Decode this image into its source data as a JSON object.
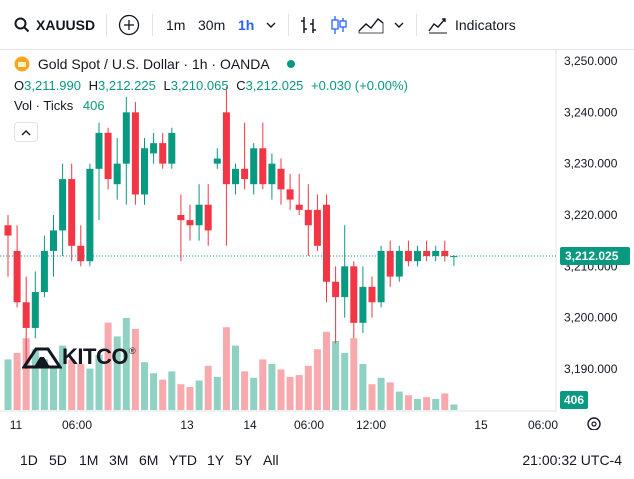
{
  "toolbar": {
    "symbol": "XAUUSD",
    "intervals": [
      "1m",
      "30m",
      "1h"
    ],
    "active_interval": "1h",
    "indicators_label": "Indicators"
  },
  "legend": {
    "title": "Gold Spot / U.S. Dollar · 1h · OANDA",
    "ohlc": [
      {
        "k": "O",
        "v": "3,211.990"
      },
      {
        "k": "H",
        "v": "3,212.225"
      },
      {
        "k": "L",
        "v": "3,210.065"
      },
      {
        "k": "C",
        "v": "3,212.025"
      }
    ],
    "change": "+0.030 (+0.00%)",
    "vol_label": "Vol · Ticks",
    "vol_value": "406"
  },
  "watermark": "KITCO",
  "current_price_label": "3,212.025",
  "current_volume_label": "406",
  "time_axis": [
    "11",
    "06:00",
    "13",
    "14",
    "06:00",
    "12:00",
    "15",
    "06:00"
  ],
  "range_buttons": [
    "1D",
    "5D",
    "1M",
    "3M",
    "6M",
    "YTD",
    "1Y",
    "5Y",
    "All"
  ],
  "clock": "21:00:32 UTC-4",
  "colors": {
    "up": "#089981",
    "down": "#f23645",
    "up_vol": "#8fd1c3",
    "down_vol": "#f7a9ad",
    "accent": "#2962ff"
  },
  "chart_data": {
    "type": "candlestick",
    "y_ticks": [
      "3,250.000",
      "3,240.000",
      "3,230.000",
      "3,220.000",
      "3,210.000",
      "3,200.000",
      "3,190.000"
    ],
    "ylim": [
      3184,
      3252
    ],
    "candles": [
      {
        "o": 3218.0,
        "h": 3220.0,
        "l": 3208.0,
        "c": 3216.0
      },
      {
        "o": 3213.0,
        "h": 3218.0,
        "l": 3202.0,
        "c": 3203.0
      },
      {
        "o": 3203.0,
        "h": 3208.0,
        "l": 3190.0,
        "c": 3198.0
      },
      {
        "o": 3198.0,
        "h": 3209.0,
        "l": 3196.0,
        "c": 3205.0
      },
      {
        "o": 3205.0,
        "h": 3216.0,
        "l": 3204.0,
        "c": 3213.0
      },
      {
        "o": 3213.0,
        "h": 3220.0,
        "l": 3208.0,
        "c": 3217.0
      },
      {
        "o": 3217.0,
        "h": 3230.0,
        "l": 3212.0,
        "c": 3227.0
      },
      {
        "o": 3227.0,
        "h": 3230.0,
        "l": 3211.0,
        "c": 3214.0
      },
      {
        "o": 3214.0,
        "h": 3218.0,
        "l": 3210.0,
        "c": 3211.0
      },
      {
        "o": 3211.0,
        "h": 3230.0,
        "l": 3210.0,
        "c": 3229.0
      },
      {
        "o": 3229.0,
        "h": 3238.0,
        "l": 3219.0,
        "c": 3236.0
      },
      {
        "o": 3236.0,
        "h": 3237.0,
        "l": 3225.0,
        "c": 3227.0
      },
      {
        "o": 3226.0,
        "h": 3235.0,
        "l": 3223.0,
        "c": 3230.0
      },
      {
        "o": 3230.0,
        "h": 3243.0,
        "l": 3222.0,
        "c": 3240.0
      },
      {
        "o": 3240.0,
        "h": 3242.0,
        "l": 3222.0,
        "c": 3224.0
      },
      {
        "o": 3224.0,
        "h": 3235.0,
        "l": 3222.0,
        "c": 3233.0
      },
      {
        "o": 3232.0,
        "h": 3236.0,
        "l": 3230.0,
        "c": 3234.0
      },
      {
        "o": 3234.0,
        "h": 3236.0,
        "l": 3229.0,
        "c": 3230.0
      },
      {
        "o": 3230.0,
        "h": 3237.0,
        "l": 3229.0,
        "c": 3236.0
      },
      {
        "o": 3220.0,
        "h": 3224.0,
        "l": 3211.0,
        "c": 3219.0
      },
      {
        "o": 3219.0,
        "h": 3222.0,
        "l": 3215.0,
        "c": 3218.0
      },
      {
        "o": 3218.0,
        "h": 3226.0,
        "l": 3215.0,
        "c": 3222.0
      },
      {
        "o": 3222.0,
        "h": 3226.0,
        "l": 3214.0,
        "c": 3217.0
      },
      {
        "o": 3230.0,
        "h": 3233.0,
        "l": 3229.0,
        "c": 3231.0
      },
      {
        "o": 3240.0,
        "h": 3245.0,
        "l": 3214.0,
        "c": 3226.0
      },
      {
        "o": 3226.0,
        "h": 3230.0,
        "l": 3224.0,
        "c": 3229.0
      },
      {
        "o": 3229.0,
        "h": 3238.0,
        "l": 3225.0,
        "c": 3227.0
      },
      {
        "o": 3226.0,
        "h": 3234.0,
        "l": 3224.0,
        "c": 3233.0
      },
      {
        "o": 3233.0,
        "h": 3238.0,
        "l": 3225.0,
        "c": 3226.0
      },
      {
        "o": 3226.0,
        "h": 3232.0,
        "l": 3223.0,
        "c": 3230.0
      },
      {
        "o": 3229.0,
        "h": 3231.0,
        "l": 3222.0,
        "c": 3225.0
      },
      {
        "o": 3225.0,
        "h": 3228.0,
        "l": 3221.0,
        "c": 3223.0
      },
      {
        "o": 3222.0,
        "h": 3228.0,
        "l": 3220.0,
        "c": 3221.0
      },
      {
        "o": 3221.0,
        "h": 3226.0,
        "l": 3212.0,
        "c": 3218.0
      },
      {
        "o": 3221.0,
        "h": 3224.0,
        "l": 3213.0,
        "c": 3214.0
      },
      {
        "o": 3222.0,
        "h": 3224.0,
        "l": 3203.0,
        "c": 3207.0
      },
      {
        "o": 3207.0,
        "h": 3210.0,
        "l": 3195.0,
        "c": 3204.0
      },
      {
        "o": 3204.0,
        "h": 3218.0,
        "l": 3200.0,
        "c": 3210.0
      },
      {
        "o": 3210.0,
        "h": 3211.0,
        "l": 3196.0,
        "c": 3199.0
      },
      {
        "o": 3199.0,
        "h": 3210.0,
        "l": 3197.0,
        "c": 3206.0
      },
      {
        "o": 3206.0,
        "h": 3208.0,
        "l": 3200.0,
        "c": 3203.0
      },
      {
        "o": 3203.0,
        "h": 3214.0,
        "l": 3202.0,
        "c": 3213.0
      },
      {
        "o": 3213.0,
        "h": 3215.0,
        "l": 3206.0,
        "c": 3208.0
      },
      {
        "o": 3208.0,
        "h": 3214.0,
        "l": 3207.0,
        "c": 3213.0
      },
      {
        "o": 3213.0,
        "h": 3215.0,
        "l": 3210.0,
        "c": 3211.0
      },
      {
        "o": 3211.0,
        "h": 3214.0,
        "l": 3210.0,
        "c": 3213.0
      },
      {
        "o": 3213.0,
        "h": 3215.0,
        "l": 3211.0,
        "c": 3212.0
      },
      {
        "o": 3212.0,
        "h": 3214.0,
        "l": 3211.0,
        "c": 3213.0
      },
      {
        "o": 3213.0,
        "h": 3215.0,
        "l": 3211.0,
        "c": 3212.0
      },
      {
        "o": 3212.0,
        "h": 3212.2,
        "l": 3210.1,
        "c": 3212.0
      }
    ],
    "volume": [
      {
        "v": 0.55,
        "up": true
      },
      {
        "v": 0.62,
        "up": false
      },
      {
        "v": 0.78,
        "up": false
      },
      {
        "v": 0.66,
        "up": true
      },
      {
        "v": 0.55,
        "up": true
      },
      {
        "v": 0.48,
        "up": true
      },
      {
        "v": 0.7,
        "up": true
      },
      {
        "v": 0.55,
        "up": false
      },
      {
        "v": 0.5,
        "up": false
      },
      {
        "v": 0.45,
        "up": true
      },
      {
        "v": 0.6,
        "up": true
      },
      {
        "v": 0.95,
        "up": false
      },
      {
        "v": 0.8,
        "up": true
      },
      {
        "v": 1.0,
        "up": true
      },
      {
        "v": 0.88,
        "up": false
      },
      {
        "v": 0.52,
        "up": true
      },
      {
        "v": 0.4,
        "up": true
      },
      {
        "v": 0.33,
        "up": false
      },
      {
        "v": 0.42,
        "up": true
      },
      {
        "v": 0.28,
        "up": false
      },
      {
        "v": 0.25,
        "up": false
      },
      {
        "v": 0.32,
        "up": true
      },
      {
        "v": 0.48,
        "up": false
      },
      {
        "v": 0.36,
        "up": true
      },
      {
        "v": 0.9,
        "up": false
      },
      {
        "v": 0.7,
        "up": true
      },
      {
        "v": 0.42,
        "up": false
      },
      {
        "v": 0.35,
        "up": true
      },
      {
        "v": 0.55,
        "up": false
      },
      {
        "v": 0.5,
        "up": true
      },
      {
        "v": 0.44,
        "up": false
      },
      {
        "v": 0.36,
        "up": false
      },
      {
        "v": 0.38,
        "up": false
      },
      {
        "v": 0.48,
        "up": false
      },
      {
        "v": 0.66,
        "up": false
      },
      {
        "v": 0.85,
        "up": false
      },
      {
        "v": 0.75,
        "up": true
      },
      {
        "v": 0.62,
        "up": true
      },
      {
        "v": 0.78,
        "up": false
      },
      {
        "v": 0.5,
        "up": true
      },
      {
        "v": 0.28,
        "up": false
      },
      {
        "v": 0.35,
        "up": true
      },
      {
        "v": 0.3,
        "up": false
      },
      {
        "v": 0.2,
        "up": true
      },
      {
        "v": 0.16,
        "up": false
      },
      {
        "v": 0.12,
        "up": true
      },
      {
        "v": 0.14,
        "up": false
      },
      {
        "v": 0.12,
        "up": true
      },
      {
        "v": 0.18,
        "up": false
      },
      {
        "v": 0.06,
        "up": true
      }
    ],
    "current_price": 3212.025
  }
}
